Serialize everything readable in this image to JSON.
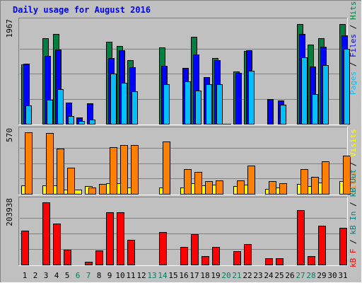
{
  "chart_data": {
    "type": "bar",
    "title": "Daily usage for August 2016",
    "days": [
      "1",
      "2",
      "3",
      "4",
      "5",
      "6",
      "7",
      "8",
      "9",
      "10",
      "11",
      "12",
      "13",
      "14",
      "15",
      "16",
      "17",
      "18",
      "19",
      "20",
      "21",
      "22",
      "23",
      "24",
      "25",
      "26",
      "27",
      "28",
      "29",
      "30",
      "31"
    ],
    "weekend_days": [
      "6",
      "7",
      "13",
      "14",
      "20",
      "21",
      "27",
      "28"
    ],
    "panels": {
      "top": {
        "scale_label": "1967",
        "max": 1967,
        "series": [
          {
            "name": "Hits",
            "color": "#008040",
            "values": [
              1160,
              0,
              1680,
              1760,
              0,
              0,
              0,
              0,
              1600,
              1520,
              1250,
              0,
              0,
              1500,
              0,
              0,
              1700,
              0,
              1290,
              0,
              1020,
              1420,
              0,
              0,
              0,
              0,
              1950,
              1550,
              1670,
              0,
              1950
            ]
          },
          {
            "name": "Files",
            "color": "#0000ff",
            "values": [
              1180,
              0,
              1330,
              1450,
              420,
              130,
              400,
              0,
              1290,
              1440,
              1110,
              0,
              0,
              1140,
              0,
              1100,
              1360,
              920,
              1240,
              0,
              1000,
              1440,
              0,
              480,
              460,
              0,
              1760,
              1120,
              1510,
              0,
              1730
            ]
          },
          {
            "name": "Pages",
            "color": "#00c0ff",
            "values": [
              360,
              0,
              470,
              680,
              150,
              50,
              90,
              0,
              990,
              800,
              640,
              0,
              0,
              770,
              0,
              830,
              650,
              770,
              770,
              0,
              0,
              1040,
              0,
              0,
              380,
              0,
              1300,
              580,
              1150,
              0,
              1470
            ]
          }
        ]
      },
      "middle": {
        "scale_label": "570",
        "max": 570,
        "series": [
          {
            "name": "Visits",
            "color": "#ffff00",
            "values": [
              80,
              0,
              80,
              80,
              40,
              40,
              70,
              0,
              100,
              100,
              60,
              0,
              0,
              60,
              0,
              60,
              100,
              80,
              85,
              0,
              70,
              85,
              0,
              45,
              60,
              0,
              90,
              75,
              105,
              0,
              120
            ]
          },
          {
            "name": "Sites",
            "color": "#ff8000",
            "values": [
              570,
              0,
              565,
              420,
              240,
              0,
              60,
              90,
              430,
              455,
              450,
              0,
              0,
              485,
              0,
              230,
              200,
              115,
              125,
              0,
              125,
              265,
              0,
              120,
              100,
              0,
              230,
              160,
              300,
              0,
              355
            ]
          }
        ]
      },
      "bottom": {
        "scale_label": "203938",
        "max": 203938,
        "series": [
          {
            "name": "KB In",
            "color": "#008080",
            "values": []
          },
          {
            "name": "KB Out",
            "color": "#008080",
            "values": []
          },
          {
            "name": "KB F",
            "color": "#ff0000",
            "values": [
              111000,
              0,
              203000,
              135000,
              48000,
              0,
              10000,
              46000,
              172000,
              172000,
              80000,
              0,
              0,
              106000,
              0,
              59000,
              100000,
              27000,
              59000,
              0,
              43000,
              68000,
              0,
              21000,
              21000,
              0,
              179000,
              28000,
              128000,
              0,
              120000
            ]
          }
        ]
      }
    }
  },
  "right_labels": {
    "top": [
      {
        "text": "Pages",
        "color": "#00c0ff"
      },
      {
        "text": " / ",
        "color": "#000000"
      },
      {
        "text": "Files",
        "color": "#0000ff"
      },
      {
        "text": " / ",
        "color": "#000000"
      },
      {
        "text": "Hits",
        "color": "#008040"
      }
    ],
    "middle": [
      {
        "text": "Sites",
        "color": "#ff8000"
      },
      {
        "text": " / ",
        "color": "#000000"
      },
      {
        "text": "Visits",
        "color": "#ffff00"
      }
    ],
    "bottom": [
      {
        "text": "kB F",
        "color": "#ff0000"
      },
      {
        "text": " / ",
        "color": "#000000"
      },
      {
        "text": "kB In",
        "color": "#008080"
      },
      {
        "text": " / ",
        "color": "#000000"
      },
      {
        "text": "kB Out",
        "color": "#008080"
      }
    ]
  },
  "colors": {
    "background": "#c0c0c0",
    "title": "#0000ff",
    "weekday": "#000000",
    "weekend": "#00805c"
  }
}
